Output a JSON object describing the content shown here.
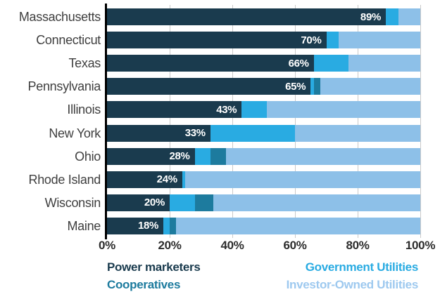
{
  "colors": {
    "power_marketers": "#1a3b4e",
    "government_utilities": "#29abe2",
    "cooperatives": "#1d7b9e",
    "investor_owned_utilities": "#8dc0e8",
    "investor_owned_legend_text": "#9ec9ef",
    "grid_line": "#c9c9c9",
    "axis_line": "#000000",
    "state_label_text": "#3f3f3f",
    "tick_label_text": "#2d2d2d",
    "bar_value_text": "#ffffff",
    "background": "#ffffff"
  },
  "chart_data": {
    "type": "bar",
    "orientation": "horizontal",
    "stacked": true,
    "title": "",
    "xlabel": "",
    "ylabel": "",
    "xlim": [
      0,
      100
    ],
    "grid": true,
    "categories": [
      "Massachusetts",
      "Connecticut",
      "Texas",
      "Pennsylvania",
      "Illinois",
      "New York",
      "Ohio",
      "Rhode Island",
      "Wisconsin",
      "Maine"
    ],
    "series": [
      {
        "name": "Power marketers",
        "color_key": "power_marketers",
        "values": [
          89,
          70,
          66,
          65,
          43,
          33,
          28,
          24,
          20,
          18
        ]
      },
      {
        "name": "Government Utilities",
        "color_key": "government_utilities",
        "values": [
          4,
          4,
          11,
          1,
          8,
          27,
          5,
          1,
          8,
          2
        ]
      },
      {
        "name": "Cooperatives",
        "color_key": "cooperatives",
        "values": [
          0,
          0,
          0,
          2,
          0,
          0,
          5,
          0,
          6,
          2
        ]
      },
      {
        "name": "Investor-Owned Utilities",
        "color_key": "investor_owned_utilities",
        "values": [
          7,
          26,
          23,
          32,
          49,
          40,
          62,
          75,
          66,
          78
        ]
      }
    ],
    "bar_labels": [
      "89%",
      "70%",
      "66%",
      "65%",
      "43%",
      "33%",
      "28%",
      "24%",
      "20%",
      "18%"
    ],
    "x_ticks": [
      {
        "label": "0%",
        "value": 0
      },
      {
        "label": "20%",
        "value": 20
      },
      {
        "label": "40%",
        "value": 40
      },
      {
        "label": "60%",
        "value": 60
      },
      {
        "label": "80%",
        "value": 80
      },
      {
        "label": "100%",
        "value": 100
      }
    ],
    "gridline_values": [
      20,
      40,
      60,
      80,
      100
    ],
    "legend": [
      {
        "label": "Power marketers",
        "color_key": "power_marketers",
        "column": "left"
      },
      {
        "label": "Cooperatives",
        "color_key": "cooperatives",
        "column": "left"
      },
      {
        "label": "Government Utilities",
        "color_key": "government_utilities",
        "column": "right"
      },
      {
        "label": "Investor-Owned Utilities",
        "color_key": "investor_owned_legend_text",
        "column": "right"
      }
    ]
  }
}
